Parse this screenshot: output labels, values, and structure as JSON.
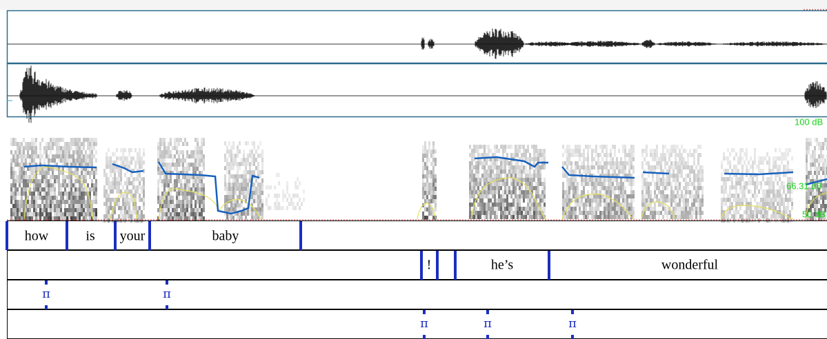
{
  "intensity_labels": {
    "top": "100 dB",
    "mid": "66.31 dB",
    "bottom": "50 dB"
  },
  "tiers": [
    {
      "intervals": [
        "how",
        "is",
        "your",
        "baby"
      ]
    },
    {
      "intervals": [
        "!",
        "he’s",
        "wonderful"
      ]
    },
    {
      "points": [
        "π",
        "π"
      ]
    },
    {
      "points": [
        "π",
        "π",
        "π"
      ]
    }
  ]
}
